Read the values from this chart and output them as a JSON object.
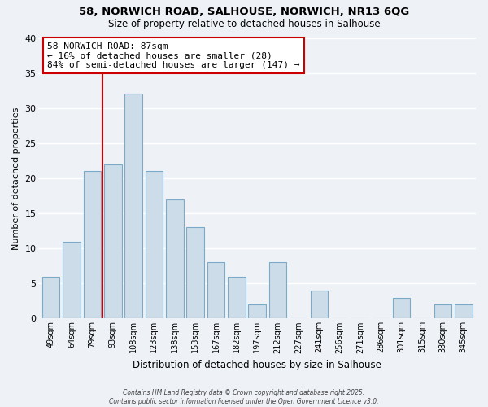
{
  "title": "58, NORWICH ROAD, SALHOUSE, NORWICH, NR13 6QG",
  "subtitle": "Size of property relative to detached houses in Salhouse",
  "xlabel": "Distribution of detached houses by size in Salhouse",
  "ylabel": "Number of detached properties",
  "bar_labels": [
    "49sqm",
    "64sqm",
    "79sqm",
    "93sqm",
    "108sqm",
    "123sqm",
    "138sqm",
    "153sqm",
    "167sqm",
    "182sqm",
    "197sqm",
    "212sqm",
    "227sqm",
    "241sqm",
    "256sqm",
    "271sqm",
    "286sqm",
    "301sqm",
    "315sqm",
    "330sqm",
    "345sqm"
  ],
  "bar_values": [
    6,
    11,
    21,
    22,
    32,
    21,
    17,
    13,
    8,
    6,
    2,
    8,
    0,
    4,
    0,
    0,
    0,
    3,
    0,
    2,
    2
  ],
  "bar_color": "#ccdce8",
  "bar_edge_color": "#7aaac8",
  "background_color": "#eef2f7",
  "grid_color": "#ffffff",
  "ylim": [
    0,
    40
  ],
  "yticks": [
    0,
    5,
    10,
    15,
    20,
    25,
    30,
    35,
    40
  ],
  "vline_color": "#cc0000",
  "annotation_title": "58 NORWICH ROAD: 87sqm",
  "annotation_line1": "← 16% of detached houses are smaller (28)",
  "annotation_line2": "84% of semi-detached houses are larger (147) →",
  "annotation_box_color": "#ffffff",
  "annotation_box_edge": "#cc0000",
  "footer1": "Contains HM Land Registry data © Crown copyright and database right 2025.",
  "footer2": "Contains public sector information licensed under the Open Government Licence v3.0."
}
